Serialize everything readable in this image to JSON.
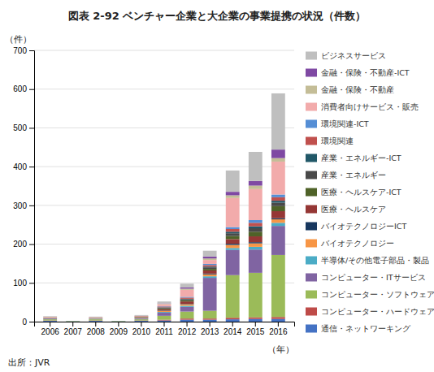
{
  "chart_data": {
    "type": "bar",
    "title": "図表 2-92  ベンチャー企業と大企業の事業提携の状況（件数）",
    "ylabel": "（件）",
    "xlabel": "（年）",
    "source": "出所：JVR",
    "stacked": true,
    "grid": true,
    "legend": "right",
    "categories": [
      "2006",
      "2007",
      "2008",
      "2009",
      "2010",
      "2011",
      "2012",
      "2013",
      "2014",
      "2015",
      "2016"
    ],
    "ylim": [
      0,
      700
    ],
    "yticks": [
      0,
      100,
      200,
      300,
      400,
      500,
      600,
      700
    ],
    "series": [
      {
        "name": "通信・ネットワーキング",
        "color": "#4472C4",
        "values": [
          2,
          1,
          2,
          1,
          2,
          3,
          5,
          5,
          6,
          7,
          7
        ]
      },
      {
        "name": "コンピューター・ハードウェア",
        "color": "#BE4B48",
        "values": [
          1,
          0,
          1,
          0,
          1,
          2,
          3,
          3,
          4,
          4,
          5
        ]
      },
      {
        "name": "コンピューター・ソフトウェア",
        "color": "#9BBB59",
        "values": [
          3,
          1,
          3,
          1,
          3,
          10,
          18,
          20,
          110,
          115,
          160
        ]
      },
      {
        "name": "コンピューター・ITサービス",
        "color": "#8064A2",
        "values": [
          2,
          0,
          1,
          0,
          2,
          8,
          12,
          85,
          65,
          60,
          75
        ]
      },
      {
        "name": "半導体/その他電子部品・製品",
        "color": "#4BACC6",
        "values": [
          1,
          0,
          1,
          0,
          1,
          2,
          3,
          4,
          5,
          7,
          8
        ]
      },
      {
        "name": "バイオテクノロジー",
        "color": "#F79646",
        "values": [
          1,
          0,
          1,
          0,
          1,
          3,
          4,
          5,
          8,
          9,
          9
        ]
      },
      {
        "name": "バイオテクノロジーICT",
        "color": "#17375E",
        "values": [
          0,
          0,
          0,
          0,
          0,
          1,
          1,
          2,
          3,
          3,
          3
        ]
      },
      {
        "name": "医療・ヘルスケア",
        "color": "#953735",
        "values": [
          1,
          0,
          1,
          0,
          1,
          3,
          6,
          8,
          12,
          15,
          18
        ]
      },
      {
        "name": "医療・ヘルスケア-ICT",
        "color": "#4F6228",
        "values": [
          0,
          0,
          0,
          0,
          1,
          2,
          3,
          4,
          8,
          12,
          13
        ]
      },
      {
        "name": "産業・エネルギー",
        "color": "#494949",
        "values": [
          0,
          0,
          0,
          0,
          1,
          2,
          3,
          4,
          7,
          9,
          9
        ]
      },
      {
        "name": "産業・エネルギー-ICT",
        "color": "#215868",
        "values": [
          0,
          0,
          0,
          0,
          0,
          1,
          1,
          2,
          4,
          5,
          5
        ]
      },
      {
        "name": "環境関連",
        "color": "#C0504D",
        "values": [
          0,
          0,
          0,
          0,
          1,
          2,
          3,
          4,
          7,
          9,
          9
        ]
      },
      {
        "name": "環境関連-ICT",
        "color": "#558ED5",
        "values": [
          0,
          0,
          0,
          0,
          0,
          1,
          2,
          3,
          5,
          7,
          7
        ]
      },
      {
        "name": "消費者向けサービス・販売",
        "color": "#F2ABAB",
        "values": [
          1,
          0,
          1,
          0,
          1,
          5,
          18,
          10,
          75,
          80,
          85
        ]
      },
      {
        "name": "金融・保険・不動産",
        "color": "#C4BD97",
        "values": [
          0,
          0,
          0,
          0,
          0,
          1,
          3,
          4,
          7,
          9,
          9
        ]
      },
      {
        "name": "金融・保険・不動産-ICT",
        "color": "#7F49A3",
        "values": [
          0,
          0,
          0,
          0,
          0,
          1,
          3,
          5,
          9,
          12,
          22
        ]
      },
      {
        "name": "ビジネスサービス",
        "color": "#BFBFBF",
        "values": [
          2,
          0,
          2,
          0,
          2,
          5,
          10,
          15,
          55,
          75,
          145
        ]
      }
    ]
  }
}
